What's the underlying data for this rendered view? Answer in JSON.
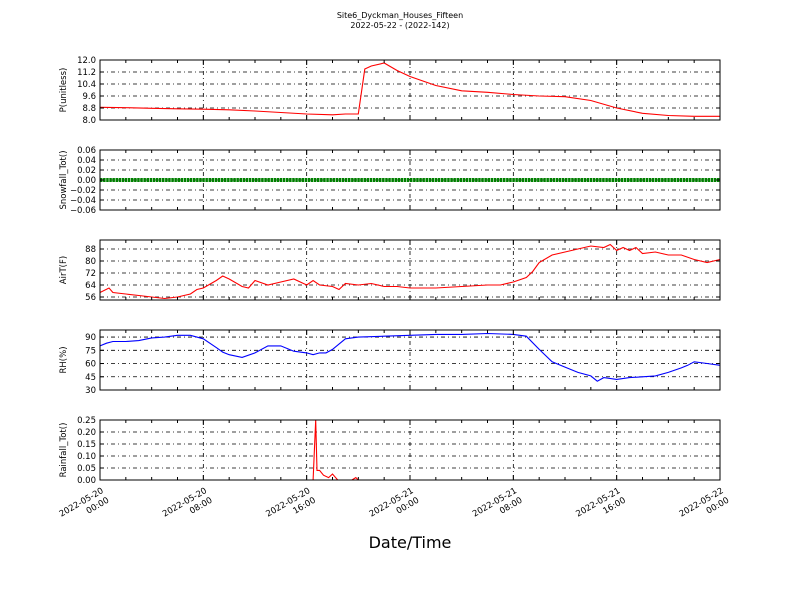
{
  "figure": {
    "title": "Site6_Dyckman_Houses_Fifteen",
    "subtitle": "2022-05-22 - (2022-142)",
    "xlabel": "Date/Time"
  },
  "chart_data": [
    {
      "type": "line",
      "ylabel": "P(unitless)",
      "ylim": [
        8.0,
        12.0
      ],
      "yticks": [
        "12.0",
        "11.2",
        "10.4",
        "9.6",
        "8.8",
        "8.0"
      ],
      "grid": true,
      "xrange": [
        0,
        48
      ],
      "color": "#ff0000",
      "x": [
        0,
        2,
        4,
        6,
        8,
        10,
        12,
        14,
        16,
        18,
        19,
        20,
        20.5,
        21,
        22,
        23,
        24,
        26,
        28,
        30,
        32,
        34,
        36,
        38,
        40,
        42,
        44,
        46,
        48
      ],
      "y": [
        8.85,
        8.82,
        8.78,
        8.75,
        8.72,
        8.68,
        8.6,
        8.5,
        8.4,
        8.35,
        8.4,
        8.4,
        11.4,
        11.6,
        11.8,
        11.3,
        10.9,
        10.3,
        9.95,
        9.85,
        9.7,
        9.6,
        9.55,
        9.3,
        8.8,
        8.45,
        8.3,
        8.25,
        8.25
      ]
    },
    {
      "type": "line",
      "ylabel": "Snowfall_Tot()",
      "ylim": [
        -0.06,
        0.06
      ],
      "yticks": [
        "0.06",
        "0.04",
        "0.02",
        "0.00",
        "−0.02",
        "−0.04",
        "−0.06"
      ],
      "grid": true,
      "xrange": [
        0,
        48
      ],
      "color": "#008000",
      "marker": "dot",
      "x": [
        0,
        48
      ],
      "y": [
        0,
        0
      ]
    },
    {
      "type": "line",
      "ylabel": "AirT(F)",
      "ylim": [
        54,
        94
      ],
      "yticks": [
        "88",
        "80",
        "72",
        "64",
        "56"
      ],
      "grid": true,
      "xrange": [
        0,
        48
      ],
      "color": "#ff0000",
      "x": [
        0,
        0.7,
        1,
        2,
        3,
        4,
        5,
        6,
        7,
        7.5,
        8,
        9,
        9.5,
        10,
        11,
        11.5,
        12,
        13,
        14,
        15,
        16,
        16.5,
        17,
        18,
        18.5,
        19,
        20,
        21,
        22,
        23,
        24,
        26,
        28,
        30,
        31,
        32,
        33,
        33.5,
        34,
        35,
        36,
        37,
        38,
        39,
        39.5,
        40,
        40.5,
        41,
        41.5,
        42,
        43,
        44,
        45,
        46,
        47,
        48
      ],
      "y": [
        59,
        62,
        59,
        58,
        57,
        56,
        55,
        56,
        58,
        61,
        62,
        67,
        70,
        68,
        63,
        62,
        67,
        64,
        66,
        68,
        64,
        67,
        64,
        63,
        61,
        65,
        64,
        65,
        63,
        63,
        62,
        62,
        63,
        64,
        64,
        66,
        69,
        73,
        79,
        84,
        86,
        88,
        90,
        89,
        91,
        87,
        89,
        87,
        89,
        85,
        86,
        84,
        84,
        81,
        79,
        81
      ]
    },
    {
      "type": "line",
      "ylabel": "RH(%)",
      "ylim": [
        30,
        98
      ],
      "yticks": [
        "90",
        "75",
        "60",
        "45",
        "30"
      ],
      "grid": true,
      "xrange": [
        0,
        48
      ],
      "color": "#0000ff",
      "x": [
        0,
        0.5,
        1,
        2,
        3,
        4,
        5,
        6,
        7,
        8,
        9,
        9.5,
        10,
        11,
        12,
        13,
        14,
        15,
        16,
        16.5,
        17,
        17.5,
        18,
        19,
        20,
        22,
        24,
        26,
        28,
        30,
        32,
        33,
        34,
        35,
        36,
        37,
        38,
        38.5,
        39,
        40,
        41,
        42,
        43,
        44,
        45,
        45.5,
        46,
        47,
        48
      ],
      "y": [
        80,
        83,
        85,
        85,
        86,
        89,
        90,
        92,
        92,
        88,
        78,
        73,
        70,
        67,
        72,
        80,
        80,
        74,
        72,
        70,
        72,
        72,
        76,
        88,
        90,
        91,
        92,
        93,
        93,
        94,
        93,
        91,
        76,
        62,
        56,
        50,
        46,
        40,
        44,
        42,
        44,
        45,
        46,
        50,
        55,
        58,
        62,
        60,
        58
      ]
    },
    {
      "type": "line",
      "ylabel": "Rainfall_Tot()",
      "ylim": [
        0.0,
        0.25
      ],
      "yticks": [
        "0.25",
        "0.20",
        "0.15",
        "0.10",
        "0.05",
        "0.00"
      ],
      "grid": true,
      "xrange": [
        0,
        48
      ],
      "color": "#ff0000",
      "x": [
        0,
        16.2,
        16.5,
        16.7,
        16.8,
        17,
        17.3,
        17.7,
        18,
        18.4,
        18.8,
        19.5,
        19.8,
        20,
        48
      ],
      "y": [
        0,
        0,
        0,
        0.25,
        0.04,
        0.04,
        0.02,
        0.01,
        0.025,
        0.0,
        0.0,
        0.0,
        0.01,
        0.0,
        0.0
      ]
    }
  ],
  "xaxis": {
    "ticks": [
      {
        "line1": "2022-05-20",
        "line2": "00:00"
      },
      {
        "line1": "2022-05-20",
        "line2": "08:00"
      },
      {
        "line1": "2022-05-20",
        "line2": "16:00"
      },
      {
        "line1": "2022-05-21",
        "line2": "00:00"
      },
      {
        "line1": "2022-05-21",
        "line2": "08:00"
      },
      {
        "line1": "2022-05-21",
        "line2": "16:00"
      },
      {
        "line1": "2022-05-22",
        "line2": "00:00"
      }
    ]
  }
}
